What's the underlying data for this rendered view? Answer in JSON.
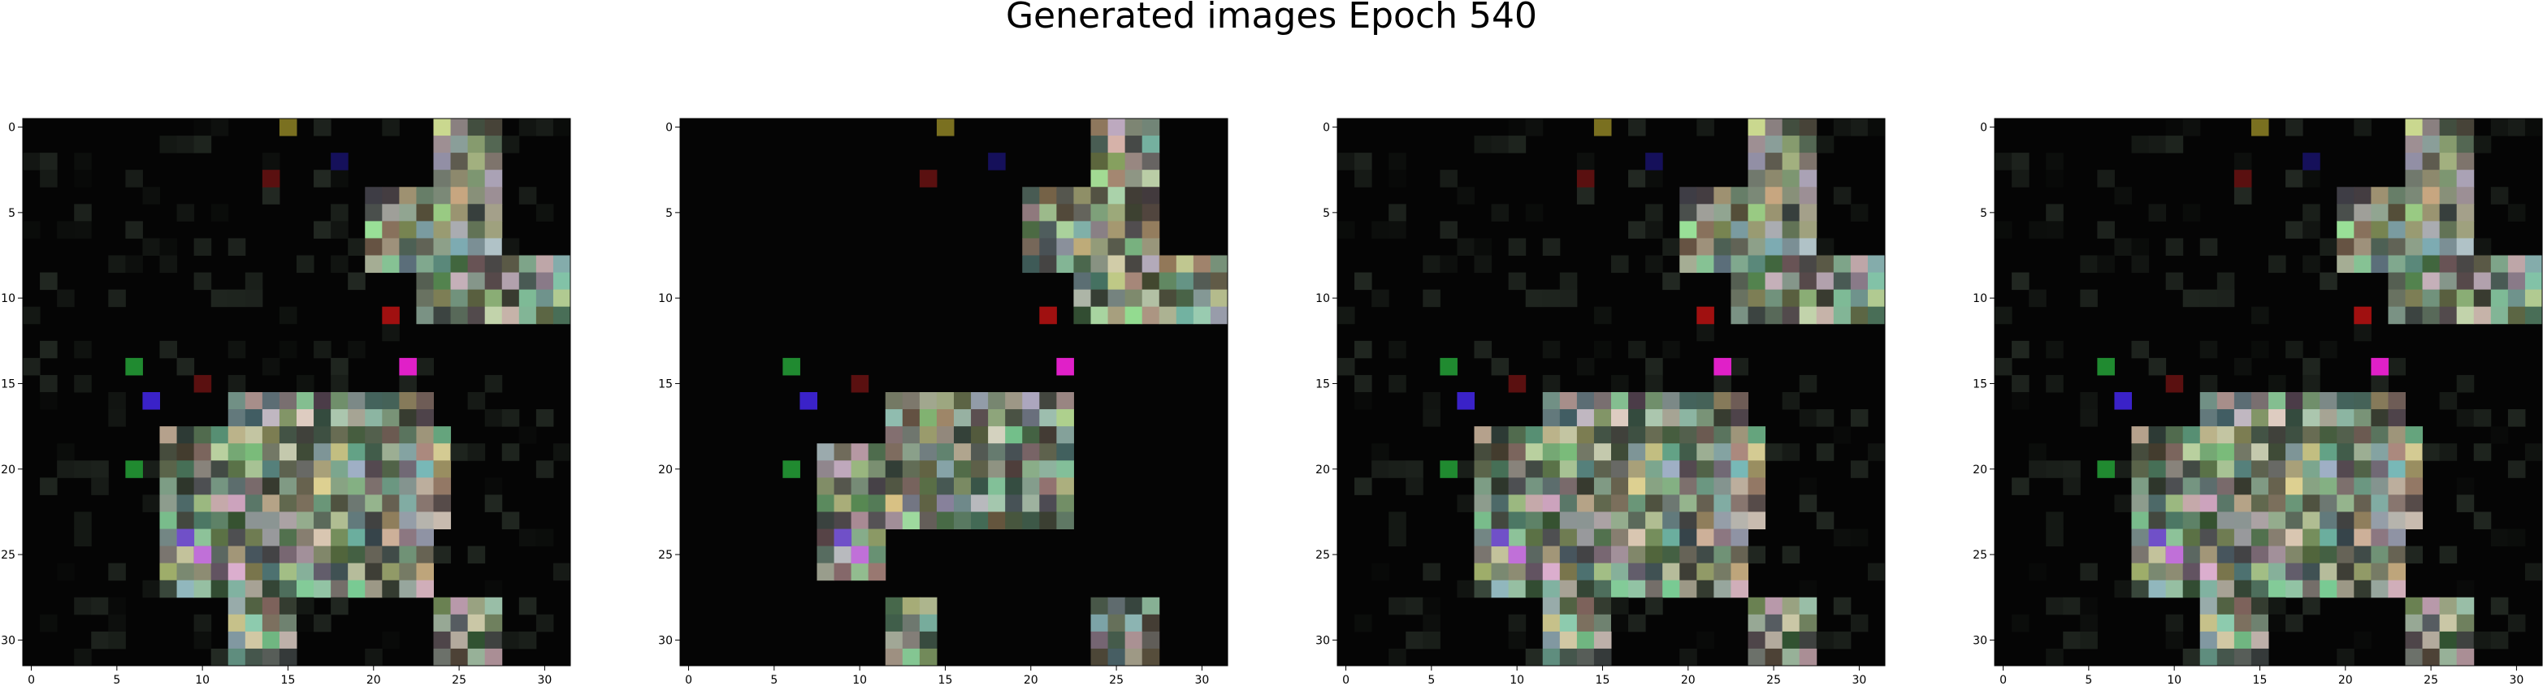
{
  "figure": {
    "title": "Generated images Epoch 540"
  },
  "axes": {
    "x_ticks": [
      "0",
      "5",
      "10",
      "15",
      "20",
      "25",
      "30"
    ],
    "y_ticks": [
      "0",
      "5",
      "10",
      "15",
      "20",
      "25",
      "30"
    ],
    "grid_size": 32
  },
  "panels": [
    {
      "image_variant": "sample-1",
      "style": "full"
    },
    {
      "image_variant": "sample-2",
      "style": "sparse"
    },
    {
      "image_variant": "sample-3",
      "style": "full"
    },
    {
      "image_variant": "sample-4",
      "style": "full"
    }
  ],
  "colors": {
    "background": "#050505",
    "patch_gray": "#8a9a86",
    "magenta": "#e020c8",
    "blue": "#3a22c8",
    "green": "#208a30",
    "red": "#a01010",
    "olive": "#7a7020"
  }
}
